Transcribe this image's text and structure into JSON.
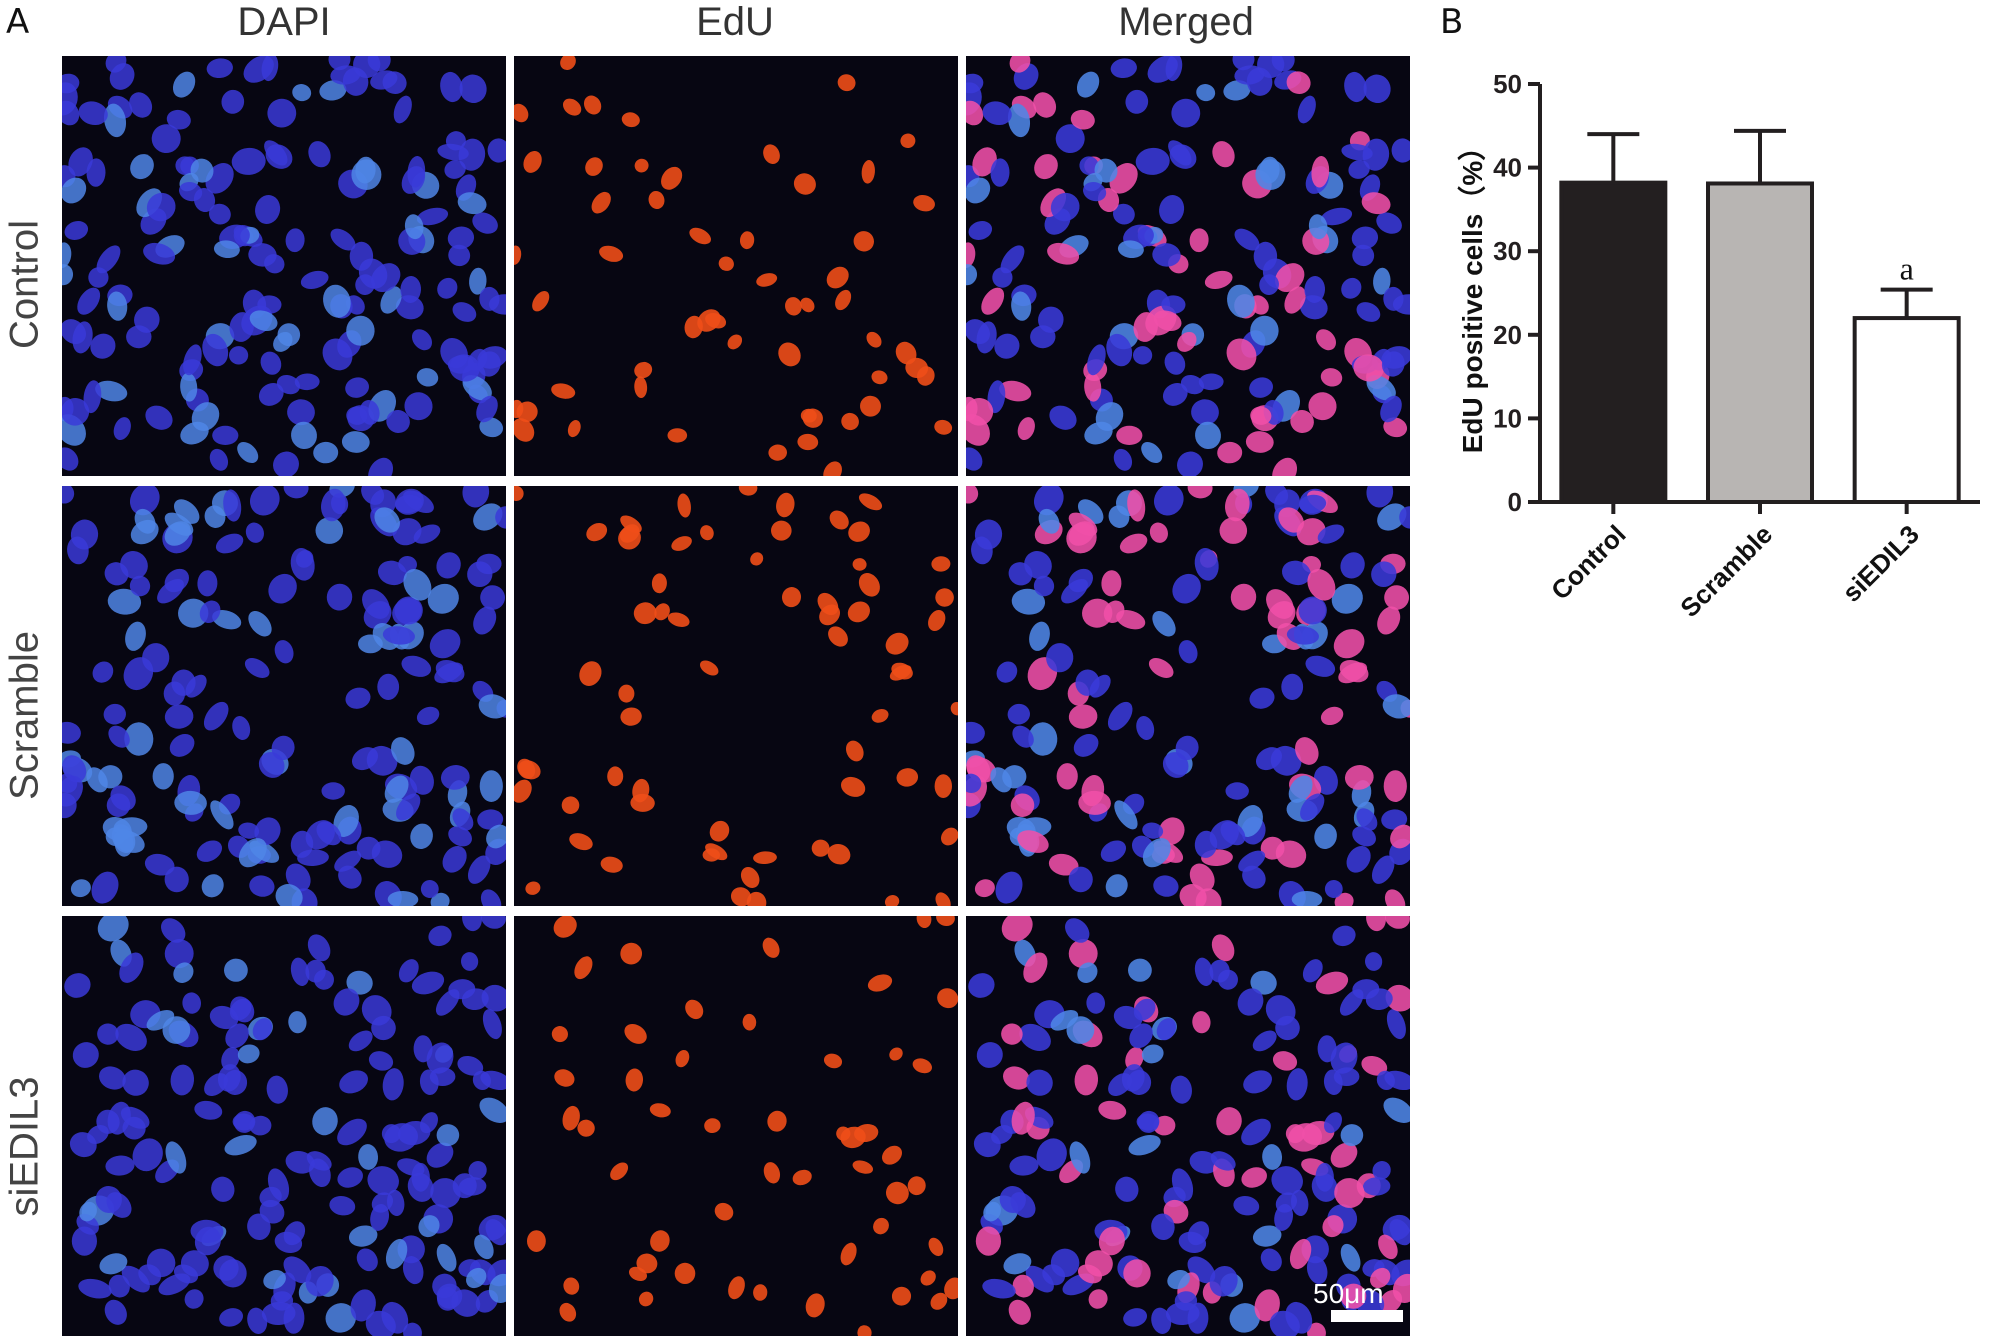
{
  "panel_a": {
    "letter": "A",
    "columns": [
      "DAPI",
      "EdU",
      "Merged"
    ],
    "rows": [
      "Control",
      "Scramble",
      "siEDIL3"
    ],
    "scale_bar_label": "50μm"
  },
  "panel_b": {
    "letter": "B"
  },
  "chart_data": {
    "type": "bar",
    "categories": [
      "Control",
      "Scramble",
      "siEDIL3"
    ],
    "values": [
      38.2,
      38.1,
      22.0
    ],
    "errors": [
      5.8,
      6.3,
      3.4
    ],
    "bar_colors": [
      "#231f20",
      "#b8b5b3",
      "#ffffff"
    ],
    "annotations": [
      {
        "category": "siEDIL3",
        "text": "a"
      }
    ],
    "title": "",
    "xlabel": "",
    "ylabel": "EdU positive cells（%）",
    "ylim": [
      0,
      50
    ],
    "yticks": [
      0,
      10,
      20,
      30,
      40,
      50
    ],
    "grid": false,
    "legend": "none"
  },
  "colors": {
    "dapi": "#3a3ad8",
    "dapi_bright": "#4f86e6",
    "edu": "#ef4e18",
    "merged_pink": "#f050a8",
    "background_dark": "#070612"
  }
}
